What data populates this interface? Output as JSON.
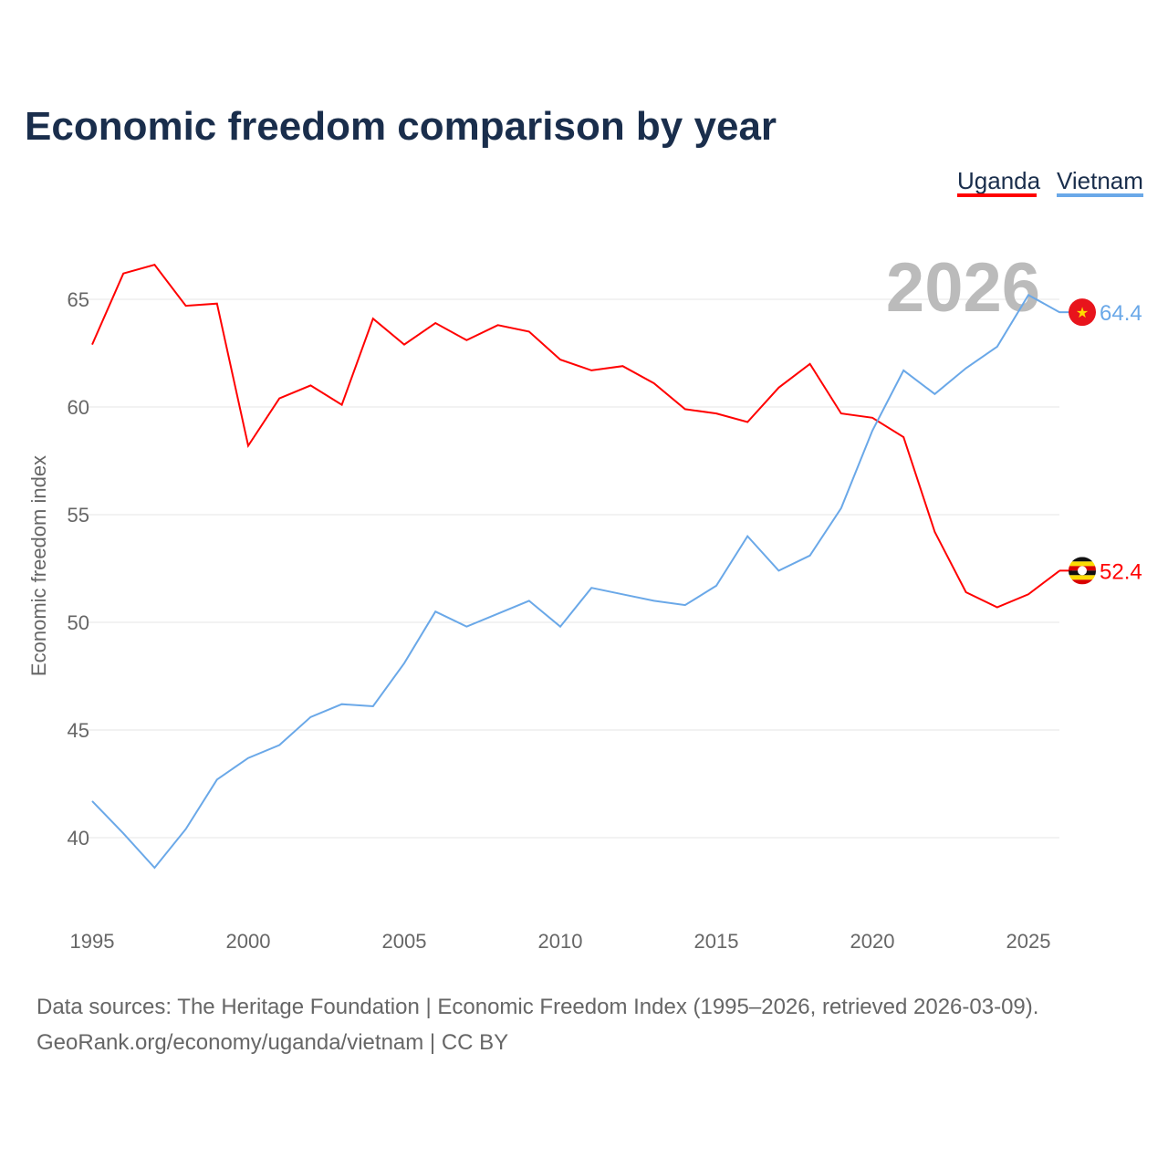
{
  "chart_data": {
    "type": "line",
    "title": "Economic freedom comparison by year",
    "xlabel": "",
    "ylabel": "Economic freedom index",
    "xlim": [
      1995,
      2026
    ],
    "ylim": [
      36.5,
      68
    ],
    "grid": true,
    "legend_placement": "top-right",
    "x_ticks": [
      "1995",
      "2000",
      "2005",
      "2010",
      "2015",
      "2020",
      "2025"
    ],
    "y_ticks": [
      "40",
      "45",
      "50",
      "55",
      "60",
      "65"
    ],
    "x": [
      1995,
      1996,
      1997,
      1998,
      1999,
      2000,
      2001,
      2002,
      2003,
      2004,
      2005,
      2006,
      2007,
      2008,
      2009,
      2010,
      2011,
      2012,
      2013,
      2014,
      2015,
      2016,
      2017,
      2018,
      2019,
      2020,
      2021,
      2022,
      2023,
      2024,
      2025,
      2026
    ],
    "series": [
      {
        "name": "Uganda",
        "color": "#ff0000",
        "end_label": "52.4",
        "values": [
          62.9,
          66.2,
          66.6,
          64.7,
          64.8,
          58.2,
          60.4,
          61.0,
          60.1,
          64.1,
          62.9,
          63.9,
          63.1,
          63.8,
          63.5,
          62.2,
          61.7,
          61.9,
          61.1,
          59.9,
          59.7,
          59.3,
          60.9,
          62.0,
          59.7,
          59.5,
          58.6,
          54.2,
          51.4,
          50.7,
          51.3,
          52.4
        ]
      },
      {
        "name": "Vietnam",
        "color": "#6aa8e8",
        "end_label": "64.4",
        "values": [
          41.7,
          40.2,
          38.6,
          40.4,
          42.7,
          43.7,
          44.3,
          45.6,
          46.2,
          46.1,
          48.1,
          50.5,
          49.8,
          50.4,
          51.0,
          49.8,
          51.6,
          51.3,
          51.0,
          50.8,
          51.7,
          54.0,
          52.4,
          53.1,
          55.3,
          58.9,
          61.7,
          60.6,
          61.8,
          62.8,
          65.2,
          64.4
        ]
      }
    ],
    "annotation_year": "2026"
  },
  "footer": {
    "line1": "Data sources: The Heritage Foundation | Economic Freedom Index (1995–2026, retrieved 2026-03-09).",
    "line2": "GeoRank.org/economy/uganda/vietnam | CC BY"
  }
}
